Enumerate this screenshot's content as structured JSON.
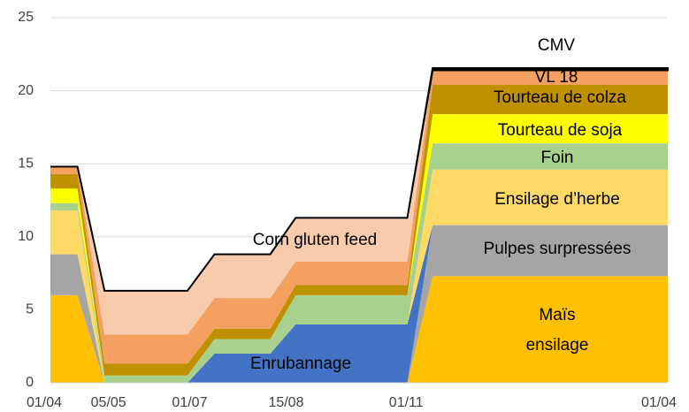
{
  "chart_data": {
    "type": "stacked_area",
    "x": [
      0,
      16,
      32,
      81,
      97,
      130,
      145,
      211,
      226,
      365
    ],
    "xlim": [
      0,
      365
    ],
    "xticks": [
      {
        "value": 0,
        "label": "01/04"
      },
      {
        "value": 38,
        "label": "05/05"
      },
      {
        "value": 86,
        "label": "01/07"
      },
      {
        "value": 143,
        "label": "15/08"
      },
      {
        "value": 214,
        "label": "01/11"
      },
      {
        "value": 365,
        "label": "01/04"
      }
    ],
    "ylim": [
      0,
      25
    ],
    "yticks": [
      0,
      5,
      10,
      15,
      20,
      25
    ],
    "grid": true,
    "series": [
      {
        "name": "Maïs ensilage",
        "color": "#FFC000",
        "values": [
          6,
          6,
          0,
          0,
          0,
          0,
          0,
          0,
          7.3,
          7.3
        ]
      },
      {
        "name": "Pulpes surpressées",
        "color": "#A5A5A5",
        "values": [
          2.8,
          2.8,
          0,
          0,
          0,
          0,
          0,
          0,
          3.5,
          3.5
        ]
      },
      {
        "name": "Enrubannage",
        "color": "#4472C4",
        "values": [
          0,
          0,
          0,
          0,
          2,
          2,
          4,
          4,
          0,
          0
        ]
      },
      {
        "name": "Ensilage d’herbe",
        "color": "#FFD966",
        "values": [
          3,
          3,
          0,
          0,
          0,
          0,
          0,
          0,
          3.8,
          3.8
        ]
      },
      {
        "name": "Foin",
        "color": "#A9D18E",
        "values": [
          0.5,
          0.5,
          0.5,
          0.5,
          1,
          1,
          2,
          2,
          1.8,
          1.8
        ]
      },
      {
        "name": "Tourteau de soja",
        "color": "#FFFF00",
        "values": [
          1,
          1,
          0,
          0,
          0,
          0,
          0,
          0,
          2,
          2
        ]
      },
      {
        "name": "Tourteau de colza",
        "color": "#BF9000",
        "values": [
          1,
          1,
          0.8,
          0.8,
          0.7,
          0.7,
          0.7,
          0.7,
          2,
          2
        ]
      },
      {
        "name": "VL 18",
        "color": "#F4A060",
        "values": [
          0.5,
          0.5,
          2,
          2,
          2.1,
          2.1,
          1.6,
          1.6,
          1,
          1
        ]
      },
      {
        "name": "Corn gluten feed",
        "color": "#F8CBAD",
        "values": [
          0,
          0,
          3,
          3,
          3,
          3,
          3,
          3,
          0,
          0
        ]
      },
      {
        "name": "CMV",
        "color": "#000000",
        "values": [
          0,
          0,
          0,
          0,
          0,
          0,
          0,
          0,
          0.15,
          0.15
        ]
      }
    ]
  }
}
